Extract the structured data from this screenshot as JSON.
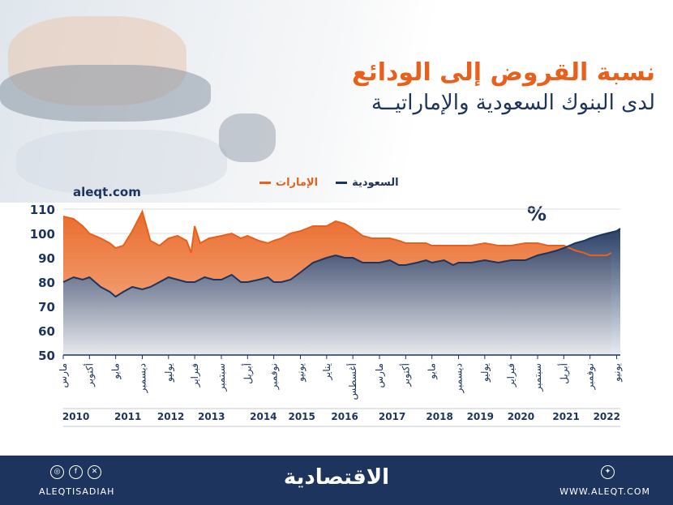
{
  "header": {
    "title": "نسبة القروض إلى الودائع",
    "subtitle": "لدى البنوك السعودية والإماراتيــة",
    "watermark": "aleqt.com",
    "unit": "%"
  },
  "footer": {
    "brand": "الاقتصادية",
    "handle": "ALEQTISADIAH",
    "site": "WWW.ALEQT.COM",
    "social_icons": [
      "instagram-icon",
      "facebook-icon",
      "x-icon"
    ],
    "site_icon": "globe-icon"
  },
  "colors": {
    "saudi": "#1d355e",
    "uae": "#e8601c",
    "footer": "#1d355e"
  },
  "chart_data": {
    "type": "area",
    "ylim": [
      50,
      110
    ],
    "yticks": [
      50,
      60,
      70,
      80,
      90,
      100,
      110
    ],
    "grid": true,
    "legend_position": "top",
    "x_range": [
      2010.17,
      2022.5
    ],
    "tick_labels": [
      {
        "label": "مارس",
        "x": 2010.17
      },
      {
        "label": "أكتوبر",
        "x": 2010.75
      },
      {
        "label": "مايو",
        "x": 2011.33
      },
      {
        "label": "ديسمبر",
        "x": 2011.92
      },
      {
        "label": "يوليو",
        "x": 2012.5
      },
      {
        "label": "فبراير",
        "x": 2013.08
      },
      {
        "label": "سبتمبر",
        "x": 2013.67
      },
      {
        "label": "أبريل",
        "x": 2014.25
      },
      {
        "label": "نوفمبر",
        "x": 2014.83
      },
      {
        "label": "يونيو",
        "x": 2015.42
      },
      {
        "label": "يناير",
        "x": 2016.0
      },
      {
        "label": "أغسطس",
        "x": 2016.58
      },
      {
        "label": "مارس",
        "x": 2017.17
      },
      {
        "label": "أكتوبر",
        "x": 2017.75
      },
      {
        "label": "مايو",
        "x": 2018.33
      },
      {
        "label": "ديسمبر",
        "x": 2018.92
      },
      {
        "label": "يوليو",
        "x": 2019.5
      },
      {
        "label": "فبراير",
        "x": 2020.08
      },
      {
        "label": "سبتمبر",
        "x": 2020.67
      },
      {
        "label": "أبريل",
        "x": 2021.25
      },
      {
        "label": "نوفمبر",
        "x": 2021.83
      },
      {
        "label": "يونيو",
        "x": 2022.42
      }
    ],
    "years": [
      {
        "label": "2010",
        "x": 2010.45
      },
      {
        "label": "2011",
        "x": 2011.6
      },
      {
        "label": "2012",
        "x": 2012.55
      },
      {
        "label": "2013",
        "x": 2013.45
      },
      {
        "label": "2014",
        "x": 2014.6
      },
      {
        "label": "2015",
        "x": 2015.45
      },
      {
        "label": "2016",
        "x": 2016.4
      },
      {
        "label": "2017",
        "x": 2017.45
      },
      {
        "label": "2018",
        "x": 2018.5
      },
      {
        "label": "2019",
        "x": 2019.4
      },
      {
        "label": "2020",
        "x": 2020.3
      },
      {
        "label": "2021",
        "x": 2021.3
      },
      {
        "label": "2022",
        "x": 2022.2
      }
    ],
    "series": [
      {
        "name": "السعودية",
        "color": "#1d355e",
        "x": [
          2010.17,
          2010.4,
          2010.6,
          2010.75,
          2011.0,
          2011.2,
          2011.33,
          2011.5,
          2011.7,
          2011.92,
          2012.1,
          2012.3,
          2012.5,
          2012.7,
          2012.9,
          2013.08,
          2013.3,
          2013.5,
          2013.67,
          2013.9,
          2014.1,
          2014.25,
          2014.5,
          2014.7,
          2014.83,
          2015.0,
          2015.2,
          2015.42,
          2015.7,
          2016.0,
          2016.2,
          2016.4,
          2016.58,
          2016.8,
          2017.0,
          2017.17,
          2017.4,
          2017.6,
          2017.75,
          2018.0,
          2018.2,
          2018.33,
          2018.6,
          2018.8,
          2018.92,
          2019.2,
          2019.5,
          2019.8,
          2020.08,
          2020.4,
          2020.67,
          2020.9,
          2021.1,
          2021.25,
          2021.5,
          2021.7,
          2021.83,
          2022.0,
          2022.2,
          2022.42,
          2022.5
        ],
        "values": [
          80,
          82,
          81,
          82,
          78,
          76,
          74,
          76,
          78,
          77,
          78,
          80,
          82,
          81,
          80,
          80,
          82,
          81,
          81,
          83,
          80,
          80,
          81,
          82,
          80,
          80,
          81,
          84,
          88,
          90,
          91,
          90,
          90,
          88,
          88,
          88,
          89,
          87,
          87,
          88,
          89,
          88,
          89,
          87,
          88,
          88,
          89,
          88,
          89,
          89,
          91,
          92,
          93,
          94,
          96,
          97,
          98,
          99,
          100,
          101,
          102
        ]
      },
      {
        "name": "الإمارات",
        "color": "#e8601c",
        "x": [
          2010.17,
          2010.4,
          2010.6,
          2010.75,
          2011.0,
          2011.2,
          2011.33,
          2011.5,
          2011.7,
          2011.92,
          2012.1,
          2012.3,
          2012.5,
          2012.7,
          2012.9,
          2013.0,
          2013.08,
          2013.2,
          2013.4,
          2013.67,
          2013.9,
          2014.1,
          2014.25,
          2014.5,
          2014.7,
          2014.83,
          2015.0,
          2015.2,
          2015.42,
          2015.7,
          2016.0,
          2016.2,
          2016.4,
          2016.58,
          2016.8,
          2017.0,
          2017.17,
          2017.4,
          2017.6,
          2017.75,
          2018.0,
          2018.2,
          2018.33,
          2018.6,
          2018.8,
          2018.92,
          2019.2,
          2019.5,
          2019.8,
          2020.08,
          2020.4,
          2020.67,
          2020.9,
          2021.1,
          2021.25,
          2021.5,
          2021.7,
          2021.83,
          2022.0,
          2022.2,
          2022.3
        ],
        "values": [
          107,
          106,
          103,
          100,
          98,
          96,
          94,
          95,
          101,
          109,
          97,
          95,
          98,
          99,
          97,
          92,
          103,
          96,
          98,
          99,
          100,
          98,
          99,
          97,
          96,
          97,
          98,
          100,
          101,
          103,
          103,
          105,
          104,
          102,
          99,
          98,
          98,
          98,
          97,
          96,
          96,
          96,
          95,
          95,
          95,
          95,
          95,
          96,
          95,
          95,
          96,
          96,
          95,
          95,
          95,
          93,
          92,
          91,
          91,
          91,
          92
        ]
      }
    ]
  }
}
